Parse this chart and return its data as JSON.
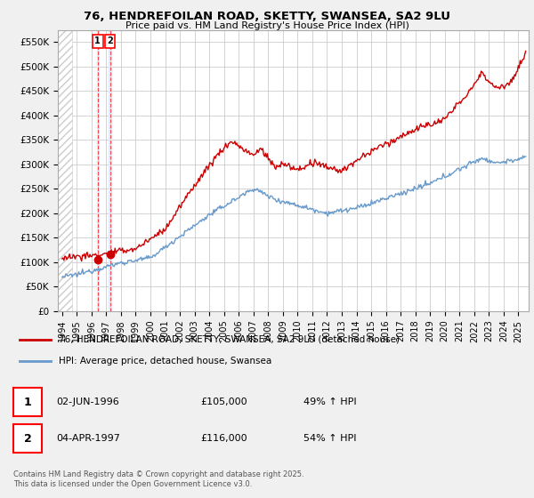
{
  "title1": "76, HENDREFOILAN ROAD, SKETTY, SWANSEA, SA2 9LU",
  "title2": "Price paid vs. HM Land Registry's House Price Index (HPI)",
  "ylim": [
    0,
    575000
  ],
  "xlim_start": 1993.7,
  "xlim_end": 2025.7,
  "yticks": [
    0,
    50000,
    100000,
    150000,
    200000,
    250000,
    300000,
    350000,
    400000,
    450000,
    500000,
    550000
  ],
  "ytick_labels": [
    "£0",
    "£50K",
    "£100K",
    "£150K",
    "£200K",
    "£250K",
    "£300K",
    "£350K",
    "£400K",
    "£450K",
    "£500K",
    "£550K"
  ],
  "sale1_date": 1996.42,
  "sale1_price": 105000,
  "sale2_date": 1997.25,
  "sale2_price": 116000,
  "red_line_color": "#cc0000",
  "blue_line_color": "#6699cc",
  "blue_shade_color": "#ddeeff",
  "grid_color": "#cccccc",
  "background_color": "#f0f0f0",
  "plot_bg_color": "#ffffff",
  "hatch_color": "#dddddd",
  "legend_label1": "76, HENDREFOILAN ROAD, SKETTY, SWANSEA, SA2 9LU (detached house)",
  "legend_label2": "HPI: Average price, detached house, Swansea",
  "footer": "Contains HM Land Registry data © Crown copyright and database right 2025.\nThis data is licensed under the Open Government Licence v3.0.",
  "xtick_years": [
    1994,
    1995,
    1996,
    1997,
    1998,
    1999,
    2000,
    2001,
    2002,
    2003,
    2004,
    2005,
    2006,
    2007,
    2008,
    2009,
    2010,
    2011,
    2012,
    2013,
    2014,
    2015,
    2016,
    2017,
    2018,
    2019,
    2020,
    2021,
    2022,
    2023,
    2024,
    2025
  ],
  "sale1_date_label": "02-JUN-1996",
  "sale1_price_label": "£105,000",
  "sale1_hpi_label": "49% ↑ HPI",
  "sale2_date_label": "04-APR-1997",
  "sale2_price_label": "£116,000",
  "sale2_hpi_label": "54% ↑ HPI"
}
